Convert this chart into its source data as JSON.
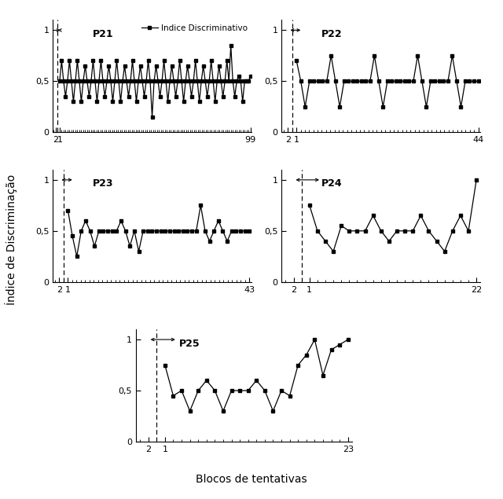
{
  "ylabel": "Índice de Discriminação",
  "xlabel": "Blocos de tentativas",
  "legend_label": "Indice Discriminativo",
  "participants": [
    "P21",
    "P22",
    "P23",
    "P24",
    "P25"
  ],
  "xmax": [
    99,
    44,
    43,
    22,
    23
  ],
  "P21_phase2": [
    0.5,
    0.7,
    0.5,
    0.35,
    0.5,
    0.7,
    0.5,
    0.3,
    0.5,
    0.7,
    0.5,
    0.3,
    0.5,
    0.65,
    0.5,
    0.35,
    0.5,
    0.7,
    0.5,
    0.3,
    0.5,
    0.7,
    0.5,
    0.35,
    0.5,
    0.65,
    0.5,
    0.3,
    0.5,
    0.7,
    0.5,
    0.3,
    0.5,
    0.65,
    0.5,
    0.35,
    0.5,
    0.7,
    0.5,
    0.3,
    0.5,
    0.65,
    0.5,
    0.35,
    0.5,
    0.7,
    0.5,
    0.15,
    0.5,
    0.65,
    0.5,
    0.35,
    0.5,
    0.7,
    0.5,
    0.3,
    0.5,
    0.65,
    0.5,
    0.35,
    0.5,
    0.7,
    0.5,
    0.3,
    0.5,
    0.65,
    0.5,
    0.35,
    0.5,
    0.7,
    0.5,
    0.3,
    0.5,
    0.65,
    0.5,
    0.35,
    0.5,
    0.7,
    0.5,
    0.3,
    0.5,
    0.65,
    0.5,
    0.35,
    0.5,
    0.7,
    0.5,
    0.85,
    0.5,
    0.35,
    0.5,
    0.55,
    0.5,
    0.3,
    0.5,
    0.5,
    0.5,
    0.55
  ],
  "P22_phase2": [
    0.7,
    0.5,
    0.25,
    0.5,
    0.5,
    0.5,
    0.5,
    0.5,
    0.75,
    0.5,
    0.25,
    0.5,
    0.5,
    0.5,
    0.5,
    0.5,
    0.5,
    0.5,
    0.75,
    0.5,
    0.25,
    0.5,
    0.5,
    0.5,
    0.5,
    0.5,
    0.5,
    0.5,
    0.75,
    0.5,
    0.25,
    0.5,
    0.5,
    0.5,
    0.5,
    0.5,
    0.75,
    0.5,
    0.25,
    0.5,
    0.5,
    0.5,
    0.5
  ],
  "P23_phase2": [
    0.7,
    0.45,
    0.25,
    0.5,
    0.6,
    0.5,
    0.35,
    0.5,
    0.5,
    0.5,
    0.5,
    0.5,
    0.6,
    0.5,
    0.35,
    0.5,
    0.3,
    0.5,
    0.5,
    0.5,
    0.5,
    0.5,
    0.5,
    0.5,
    0.5,
    0.5,
    0.5,
    0.5,
    0.5,
    0.5,
    0.75,
    0.5,
    0.4,
    0.5,
    0.6,
    0.5,
    0.4,
    0.5,
    0.5,
    0.5,
    0.5,
    0.5
  ],
  "P24_phase2": [
    0.75,
    0.5,
    0.4,
    0.3,
    0.55,
    0.5,
    0.5,
    0.5,
    0.65,
    0.5,
    0.4,
    0.5,
    0.5,
    0.5,
    0.65,
    0.5,
    0.4,
    0.3,
    0.5,
    0.65,
    0.5,
    1.0
  ],
  "P25_phase2": [
    0.75,
    0.45,
    0.5,
    0.3,
    0.5,
    0.6,
    0.5,
    0.3,
    0.5,
    0.5,
    0.5,
    0.6,
    0.5,
    0.3,
    0.5,
    0.45,
    0.75,
    0.85,
    1.0,
    0.65,
    0.9,
    0.95,
    1.0
  ],
  "line_color": "#000000",
  "bg_color": "#ffffff",
  "marker_size": 3,
  "line_width": 0.9
}
